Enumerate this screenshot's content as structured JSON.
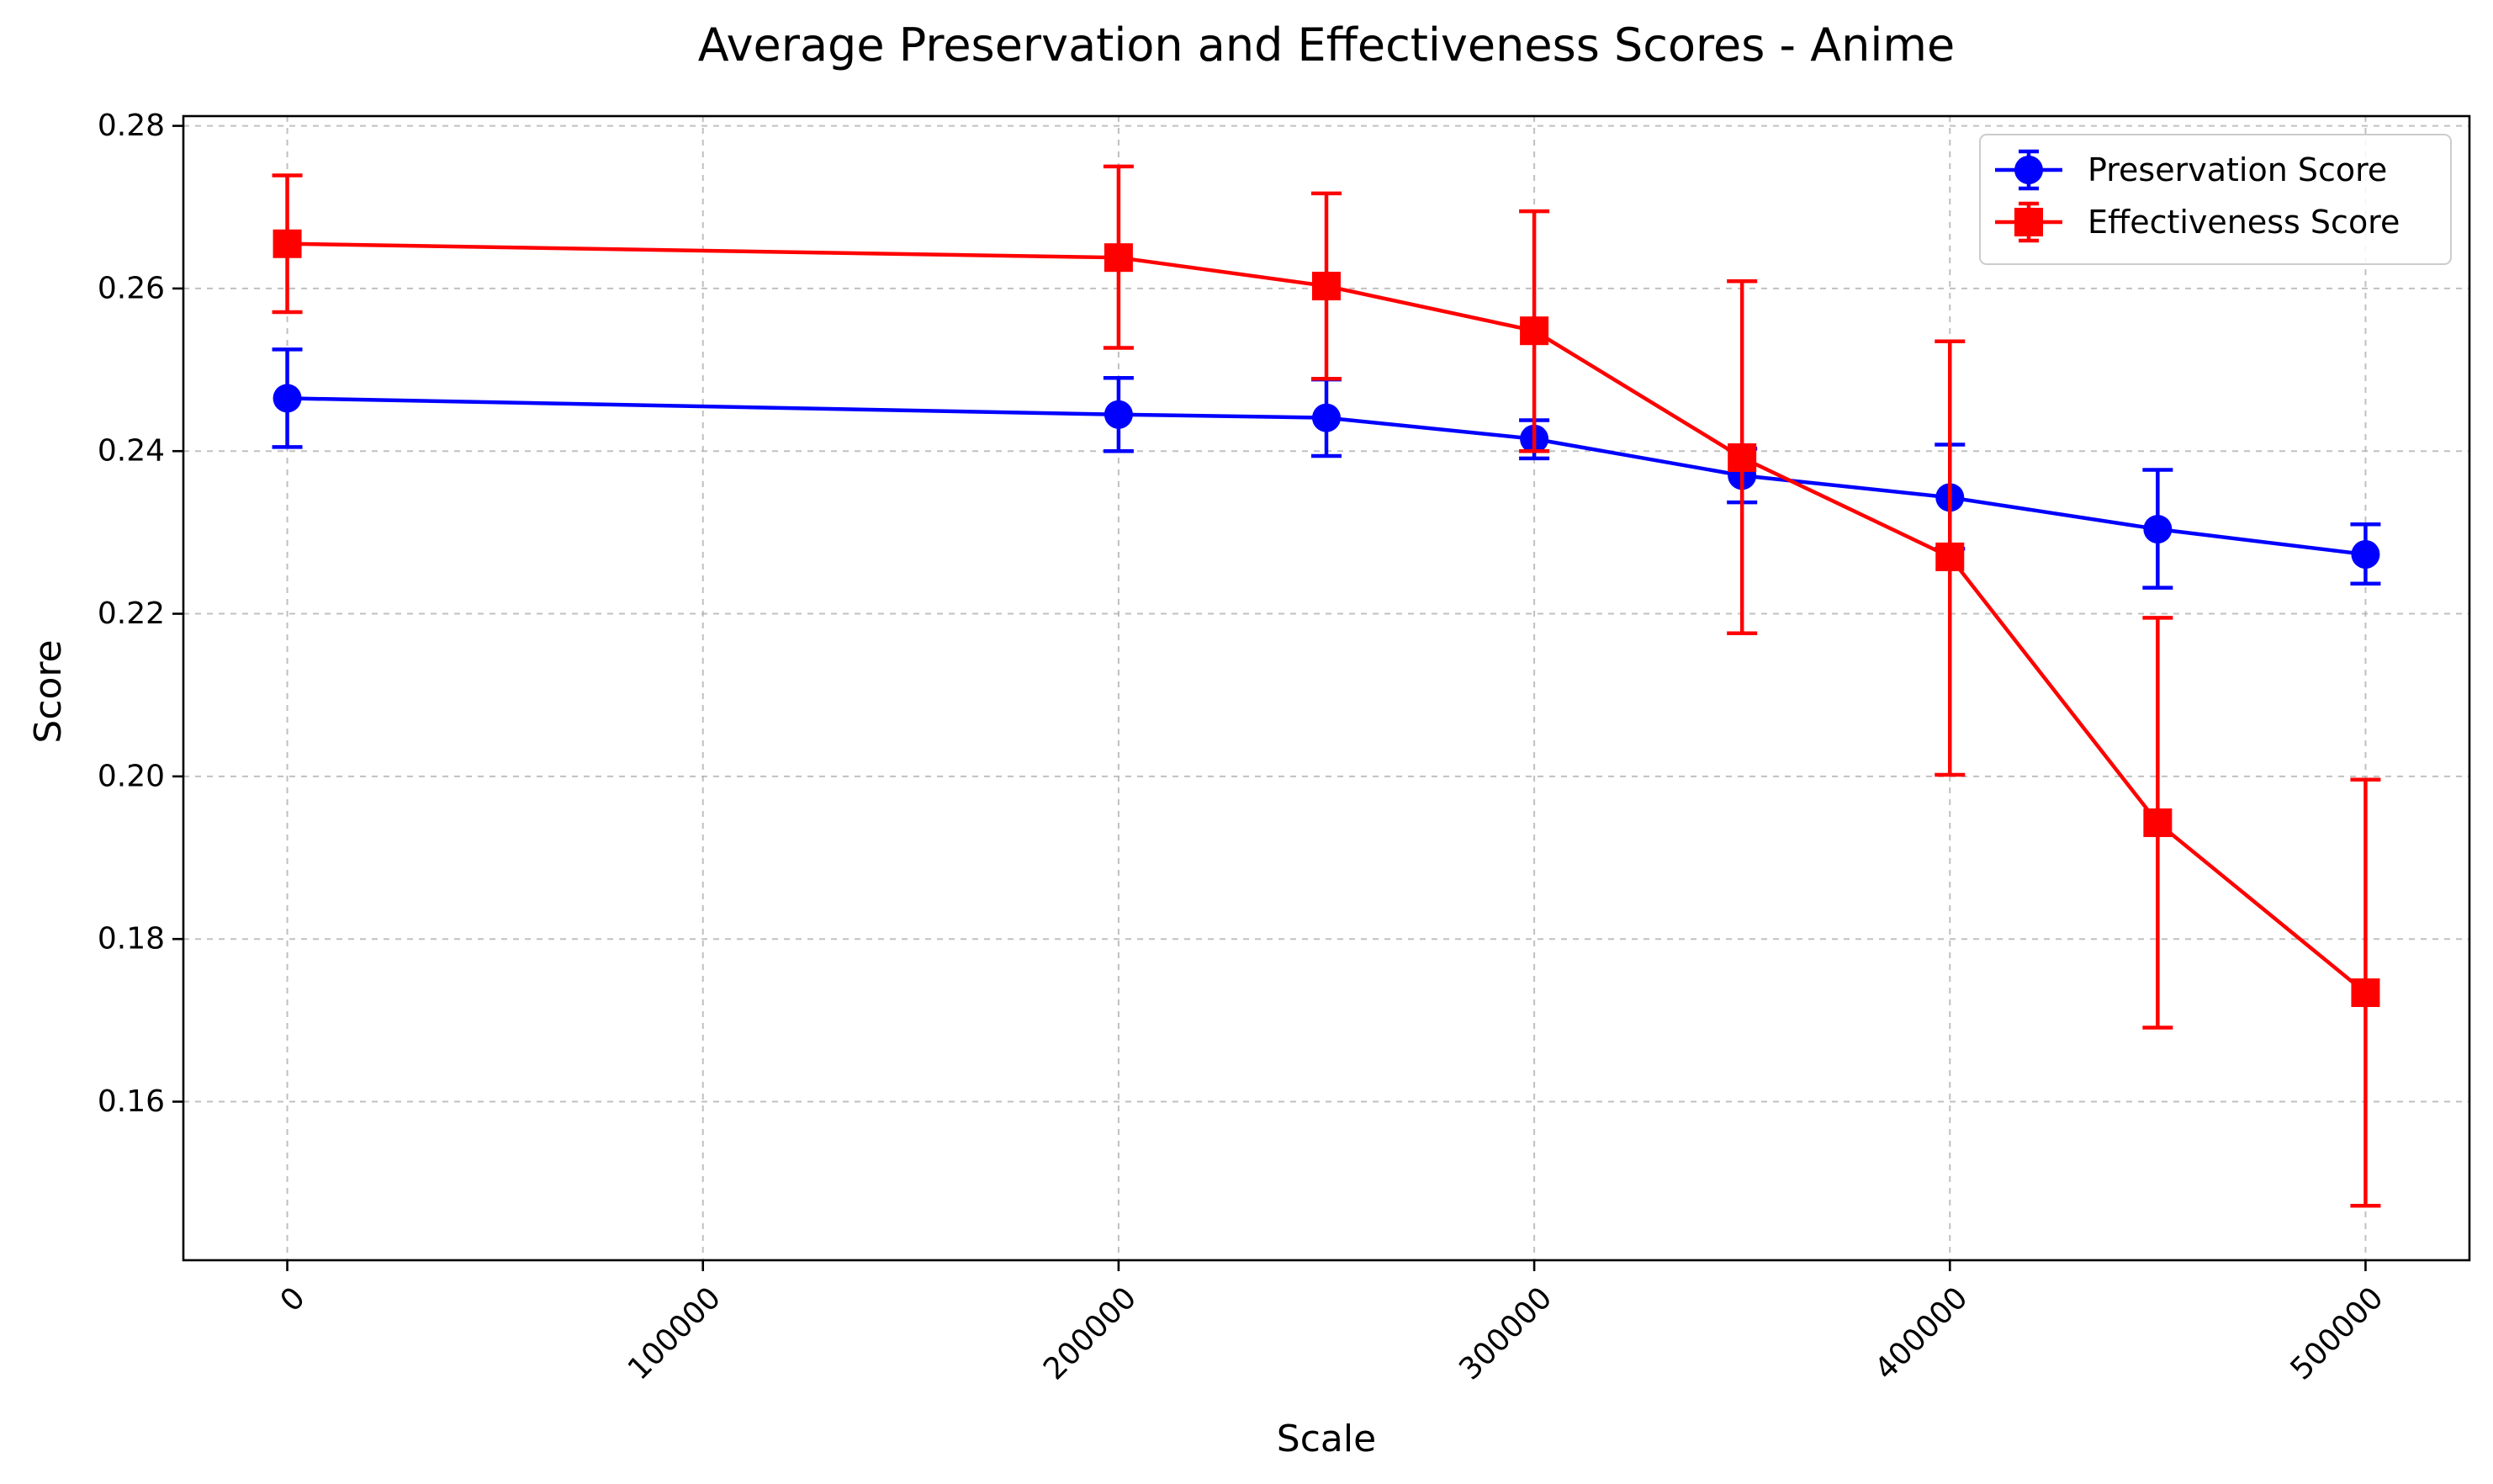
{
  "chart_data": {
    "type": "line",
    "title": "Average Preservation and Effectiveness Scores - Anime",
    "xlabel": "Scale",
    "ylabel": "Score",
    "xlim": [
      -25000,
      525000
    ],
    "ylim": [
      0.1405,
      0.2812
    ],
    "xticks": [
      0,
      100000,
      200000,
      300000,
      400000,
      500000
    ],
    "xtick_labels": [
      "0",
      "100000",
      "200000",
      "300000",
      "400000",
      "500000"
    ],
    "xtick_rotation": 45,
    "yticks": [
      0.16,
      0.18,
      0.2,
      0.22,
      0.24,
      0.26,
      0.28
    ],
    "ytick_labels": [
      "0.16",
      "0.18",
      "0.20",
      "0.22",
      "0.24",
      "0.26",
      "0.28"
    ],
    "grid": true,
    "legend_position": "top-right",
    "x": [
      0,
      200000,
      250000,
      300000,
      350000,
      400000,
      450000,
      500000
    ],
    "series": [
      {
        "name": "Preservation Score",
        "color": "#0000ff",
        "marker": "circle",
        "values": [
          0.2465,
          0.2445,
          0.2441,
          0.2415,
          0.237,
          0.2343,
          0.2304,
          0.2273
        ],
        "err_low": [
          0.2405,
          0.24,
          0.2394,
          0.2391,
          0.2337,
          0.228,
          0.2232,
          0.2237
        ],
        "err_high": [
          0.2525,
          0.249,
          0.2488,
          0.2438,
          0.2403,
          0.2408,
          0.2377,
          0.231
        ]
      },
      {
        "name": "Effectiveness Score",
        "color": "#ff0000",
        "marker": "square",
        "values": [
          0.2655,
          0.2638,
          0.2603,
          0.2548,
          0.2392,
          0.227,
          0.1943,
          0.1734
        ],
        "err_low": [
          0.2571,
          0.2527,
          0.2489,
          0.24,
          0.2176,
          0.2002,
          0.1691,
          0.1472
        ],
        "err_high": [
          0.2739,
          0.275,
          0.2717,
          0.2695,
          0.2609,
          0.2535,
          0.2195,
          0.1996
        ]
      }
    ]
  }
}
